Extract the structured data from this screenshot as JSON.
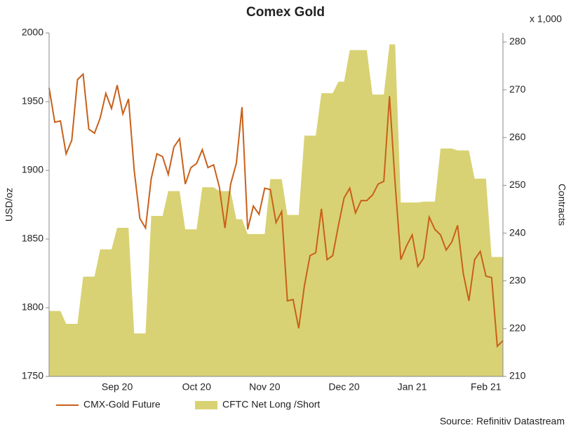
{
  "chart_data": {
    "type": "line",
    "title": "Comex Gold",
    "y_label": "USD/oz",
    "y2_label": "Contracts",
    "y2_unit": "x 1,000",
    "source": "Source: Refinitiv Datastream",
    "categories": [
      null,
      null,
      null,
      null,
      null,
      null,
      null,
      null,
      null,
      null,
      null,
      null,
      "Sep 20",
      null,
      null,
      null,
      null,
      null,
      null,
      null,
      null,
      null,
      null,
      null,
      null,
      null,
      "Oct 20",
      null,
      null,
      null,
      null,
      null,
      null,
      null,
      null,
      null,
      null,
      null,
      "Nov 20",
      null,
      null,
      null,
      null,
      null,
      null,
      null,
      null,
      null,
      null,
      null,
      null,
      null,
      "Dec 20",
      null,
      null,
      null,
      null,
      null,
      null,
      null,
      null,
      null,
      null,
      null,
      "Jan 21",
      null,
      null,
      null,
      null,
      null,
      null,
      null,
      null,
      null,
      null,
      null,
      null,
      "Feb 21",
      null,
      null,
      null
    ],
    "ylim": [
      1750,
      2000
    ],
    "yticks": [
      1750,
      1800,
      1850,
      1900,
      1950,
      2000
    ],
    "y2lim": [
      210,
      281.9
    ],
    "y2ticks": [
      210,
      220,
      230,
      240,
      250,
      260,
      270,
      280
    ],
    "series": [
      {
        "name": "CMX-Gold Future",
        "type": "line",
        "color": "#c8601a",
        "values": [
          1960,
          1935,
          1936,
          1912,
          1922,
          1966,
          1970,
          1930,
          1927,
          1938,
          1956,
          1945,
          1962,
          1941,
          1952,
          1900,
          1865,
          1858,
          1894,
          1912,
          1910,
          1897,
          1917,
          1923,
          1890,
          1902,
          1905,
          1915,
          1902,
          1904,
          1888,
          1858,
          1890,
          1905,
          1946,
          1857,
          1874,
          1868,
          1887,
          1886,
          1862,
          1870,
          1805,
          1806,
          1785,
          1816,
          1838,
          1840,
          1872,
          1835,
          1838,
          1860,
          1880,
          1887,
          1869,
          1878,
          1878,
          1882,
          1890,
          1892,
          1954,
          1890,
          1835,
          1845,
          1853,
          1830,
          1836,
          1866,
          1857,
          1853,
          1842,
          1848,
          1860,
          1825,
          1805,
          1835,
          1841,
          1823,
          1822,
          1772,
          1776
        ]
      },
      {
        "name": "CFTC Net Long /Short",
        "type": "area",
        "axis": "y2",
        "color": "#d9d274",
        "values": [
          223.7,
          223.7,
          223.7,
          221,
          221,
          221,
          230.9,
          230.9,
          230.9,
          236.6,
          236.6,
          236.6,
          241.1,
          241.1,
          241.1,
          219,
          219,
          219,
          243.6,
          243.6,
          243.6,
          248.8,
          248.8,
          248.8,
          240.8,
          240.8,
          240.8,
          249.6,
          249.6,
          249.6,
          248.8,
          248.8,
          248.8,
          242.9,
          242.9,
          239.8,
          239.8,
          239.8,
          239.8,
          251.3,
          251.3,
          251.3,
          243.8,
          243.8,
          243.8,
          260.4,
          260.4,
          260.4,
          269.3,
          269.3,
          269.3,
          271.7,
          271.7,
          278.3,
          278.3,
          278.3,
          278.3,
          269,
          269,
          269,
          279.5,
          279.5,
          246.4,
          246.4,
          246.4,
          246.4,
          246.6,
          246.6,
          246.6,
          257.7,
          257.7,
          257.7,
          257.3,
          257.3,
          257.3,
          251.4,
          251.4,
          251.4,
          235,
          235,
          235
        ]
      }
    ]
  }
}
